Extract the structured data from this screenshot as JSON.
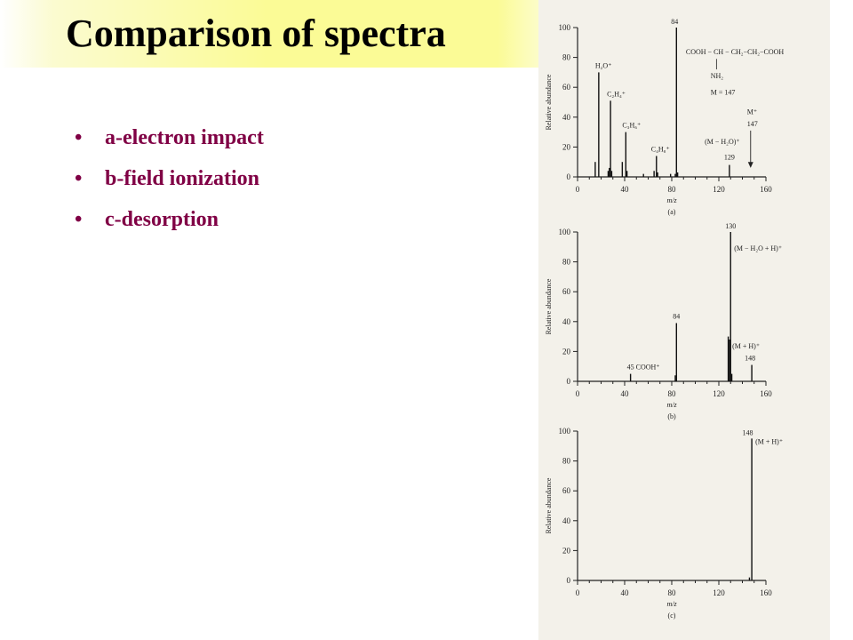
{
  "slide": {
    "title": "Comparison of spectra",
    "bullets": [
      "a-electron impact",
      "b-field ionization",
      "c-desorption"
    ],
    "bullet_color": "#800045",
    "title_band_color": "#fbfb96"
  },
  "chart_data": [
    {
      "type": "bar",
      "caption": "(a)",
      "xlabel": "m/z",
      "ylabel": "Relative abundance",
      "xlim": [
        0,
        160
      ],
      "ylim": [
        0,
        100
      ],
      "xticks": [
        0,
        40,
        80,
        120,
        160
      ],
      "yticks": [
        0,
        20,
        40,
        60,
        80,
        100
      ],
      "peaks": [
        {
          "x": 15,
          "y": 10
        },
        {
          "x": 18,
          "y": 70
        },
        {
          "x": 26,
          "y": 4
        },
        {
          "x": 27,
          "y": 6
        },
        {
          "x": 28,
          "y": 51
        },
        {
          "x": 29,
          "y": 4
        },
        {
          "x": 38,
          "y": 10
        },
        {
          "x": 41,
          "y": 30
        },
        {
          "x": 42,
          "y": 4
        },
        {
          "x": 56,
          "y": 2
        },
        {
          "x": 65,
          "y": 4
        },
        {
          "x": 67,
          "y": 14
        },
        {
          "x": 68,
          "y": 3
        },
        {
          "x": 79,
          "y": 2
        },
        {
          "x": 83,
          "y": 2
        },
        {
          "x": 84,
          "y": 100
        },
        {
          "x": 85,
          "y": 3
        },
        {
          "x": 129,
          "y": 8
        }
      ],
      "annotations": [
        {
          "label": "84",
          "x": 84,
          "y": 100
        },
        {
          "label": "H₂O⁺",
          "x": 18,
          "y": 70
        },
        {
          "label": "C₂H₄⁺",
          "x": 28,
          "y": 51
        },
        {
          "label": "C₃H₆⁺",
          "x": 41,
          "y": 30
        },
        {
          "label": "C₄H₈⁺",
          "x": 67,
          "y": 14
        },
        {
          "label": "(M − H₂O)⁺",
          "x": 108,
          "y": 22
        },
        {
          "label": "129",
          "x": 129,
          "y": 8
        },
        {
          "label": "M⁺",
          "x": 144,
          "y": 42
        },
        {
          "label": "147",
          "x": 144,
          "y": 34
        }
      ],
      "structure": {
        "line1": "COOH − CH − CH₂−CH₂−COOH",
        "line2": "NH₂",
        "line3": "M = 147"
      },
      "arrow_at_x": 147
    },
    {
      "type": "bar",
      "caption": "(b)",
      "xlabel": "m/z",
      "ylabel": "Relative abundance",
      "xlim": [
        0,
        160
      ],
      "ylim": [
        0,
        100
      ],
      "xticks": [
        0,
        40,
        80,
        120,
        160
      ],
      "yticks": [
        0,
        20,
        40,
        60,
        80,
        100
      ],
      "peaks": [
        {
          "x": 45,
          "y": 5
        },
        {
          "x": 83,
          "y": 4
        },
        {
          "x": 84,
          "y": 39
        },
        {
          "x": 128,
          "y": 30
        },
        {
          "x": 129,
          "y": 28
        },
        {
          "x": 130,
          "y": 100
        },
        {
          "x": 131,
          "y": 5
        },
        {
          "x": 148,
          "y": 11
        }
      ],
      "annotations": [
        {
          "label": "130",
          "x": 130,
          "y": 100
        },
        {
          "label": "(M − H₂O + H)⁺",
          "x": 130,
          "y": 90
        },
        {
          "label": "84",
          "x": 84,
          "y": 39
        },
        {
          "label": "45 COOH⁺",
          "x": 45,
          "y": 5
        },
        {
          "label": "(M + H)⁺",
          "x": 148,
          "y": 22
        },
        {
          "label": "148",
          "x": 148,
          "y": 14
        }
      ]
    },
    {
      "type": "bar",
      "caption": "(c)",
      "xlabel": "m/z",
      "ylabel": "Relative abundance",
      "xlim": [
        0,
        160
      ],
      "ylim": [
        0,
        100
      ],
      "xticks": [
        0,
        40,
        80,
        120,
        160
      ],
      "yticks": [
        0,
        20,
        40,
        60,
        80,
        100
      ],
      "peaks": [
        {
          "x": 146,
          "y": 2
        },
        {
          "x": 148,
          "y": 95
        }
      ],
      "annotations": [
        {
          "label": "148",
          "x": 146,
          "y": 95
        },
        {
          "label": "(M + H)⁺",
          "x": 148,
          "y": 95
        }
      ]
    }
  ]
}
